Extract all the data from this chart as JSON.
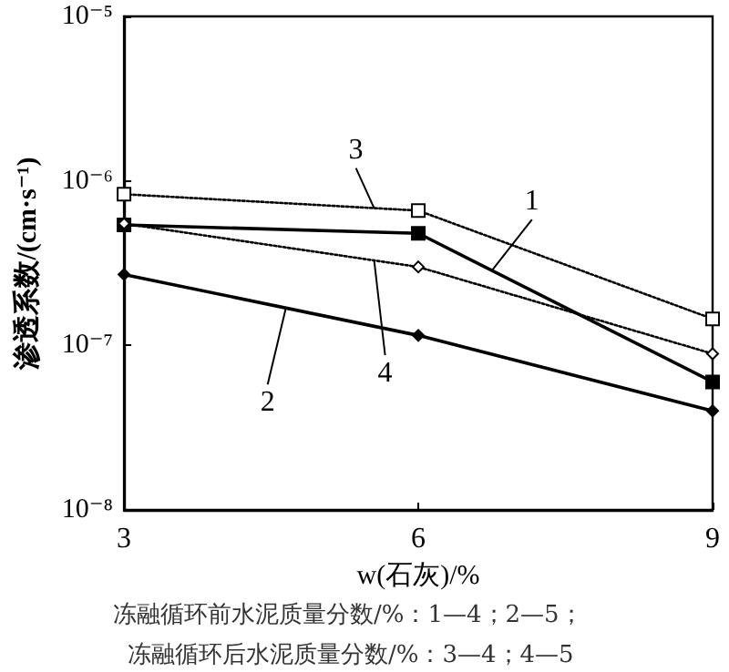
{
  "chart_data": {
    "type": "line",
    "xlabel": "w(石灰)/%",
    "ylabel": "渗透系数/(cm·s⁻¹)",
    "x": [
      3,
      6,
      9
    ],
    "series": [
      {
        "name": "1",
        "color": "#000000",
        "values": [
          5.4e-07,
          4.8e-07,
          6e-08
        ],
        "marker": "square",
        "line_style": "solid"
      },
      {
        "name": "2",
        "color": "#000000",
        "values": [
          2.7e-07,
          1.15e-07,
          4e-08
        ],
        "marker": "diamond",
        "line_style": "solid"
      },
      {
        "name": "3",
        "color": "#000000",
        "values": [
          8.3e-07,
          6.6e-07,
          1.45e-07
        ],
        "marker": "square",
        "line_style": "dotted"
      },
      {
        "name": "4",
        "color": "#000000",
        "values": [
          5.5e-07,
          3e-07,
          8.9e-08
        ],
        "marker": "diamond",
        "line_style": "dotted"
      }
    ],
    "xlim": [
      3,
      9
    ],
    "xticks": [
      3,
      6,
      9
    ],
    "log": "y",
    "ylim": [
      1e-08,
      1e-05
    ],
    "yticks": [
      {
        "value": 1e-08,
        "label": "10⁻⁸"
      },
      {
        "value": 1e-07,
        "label": "10⁻⁷"
      },
      {
        "value": 1e-06,
        "label": "10⁻⁶"
      },
      {
        "value": 1e-05,
        "label": "10⁻⁵"
      }
    ],
    "grid": false,
    "legend": false,
    "annotations": [
      "冻融循环前水泥质量分数/%：1—4；2—5；",
      "冻融循环后水泥质量分数/%：3—4；4—5"
    ]
  }
}
